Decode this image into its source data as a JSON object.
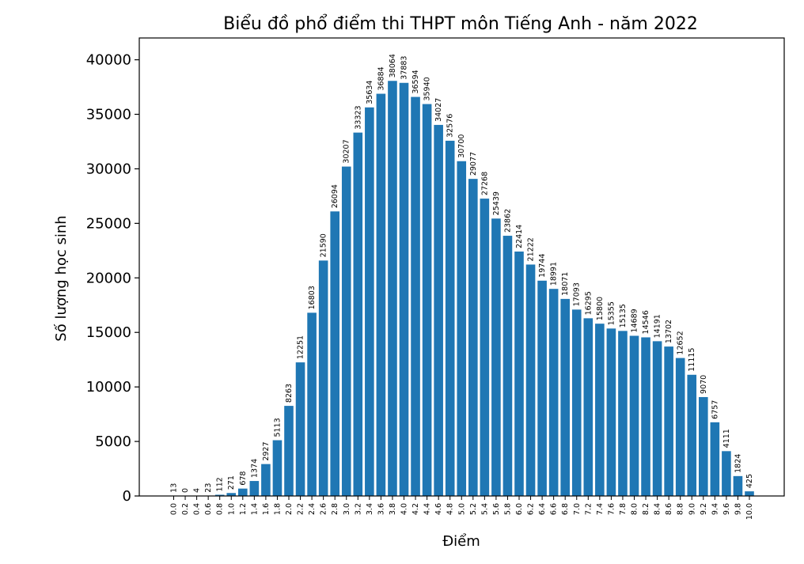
{
  "chart_data": {
    "type": "bar",
    "title": "Biểu đồ phổ điểm thi THPT môn Tiếng Anh - năm 2022",
    "xlabel": "Điểm",
    "ylabel": "Số lượng học sinh",
    "ylim": [
      0,
      42000
    ],
    "yticks": [
      "0",
      "5000",
      "10000",
      "15000",
      "20000",
      "25000",
      "30000",
      "35000",
      "40000"
    ],
    "bar_color": "#1f77b4",
    "grid": false,
    "categories": [
      "0.0",
      "0.2",
      "0.4",
      "0.6",
      "0.8",
      "1.0",
      "1.2",
      "1.4",
      "1.6",
      "1.8",
      "2.0",
      "2.2",
      "2.4",
      "2.6",
      "2.8",
      "3.0",
      "3.2",
      "3.4",
      "3.6",
      "3.8",
      "4.0",
      "4.2",
      "4.4",
      "4.6",
      "4.8",
      "5.0",
      "5.2",
      "5.4",
      "5.6",
      "5.8",
      "6.0",
      "6.2",
      "6.4",
      "6.6",
      "6.8",
      "7.0",
      "7.2",
      "7.4",
      "7.6",
      "7.8",
      "8.0",
      "8.2",
      "8.4",
      "8.6",
      "8.8",
      "9.0",
      "9.2",
      "9.4",
      "9.6",
      "9.8",
      "10.0"
    ],
    "values": [
      13,
      0,
      4,
      23,
      112,
      271,
      678,
      1374,
      2927,
      5113,
      8263,
      12251,
      16803,
      21590,
      26094,
      30207,
      33323,
      35634,
      36884,
      38064,
      37883,
      36594,
      35940,
      34027,
      32576,
      30700,
      29077,
      27268,
      25439,
      23862,
      22414,
      21222,
      19744,
      18991,
      18071,
      17093,
      16295,
      15800,
      15355,
      15135,
      14689,
      14546,
      14191,
      13702,
      12652,
      11115,
      9070,
      6757,
      4111,
      1824,
      425
    ]
  }
}
